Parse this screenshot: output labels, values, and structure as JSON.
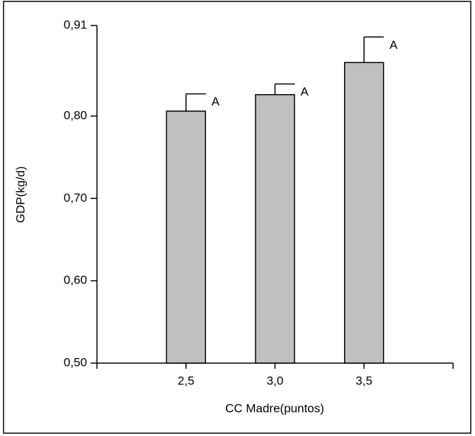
{
  "chart_data": {
    "type": "bar",
    "x_label": "CC Madre(puntos)",
    "y_label": "GDP(kg/d)",
    "categories": [
      "2,5",
      "3,0",
      "3,5"
    ],
    "values": [
      0.806,
      0.826,
      0.865
    ],
    "errors": [
      0.021,
      0.013,
      0.031
    ],
    "annotations": [
      "A",
      "A",
      "A"
    ],
    "color": "#c0c0c0",
    "ylim": [
      0.5,
      0.91
    ],
    "yticks": [
      {
        "value": 0.5,
        "label": "0,50"
      },
      {
        "value": 0.6,
        "label": "0,60"
      },
      {
        "value": 0.7,
        "label": "0,70"
      },
      {
        "value": 0.8,
        "label": "0,80"
      },
      {
        "value": 0.91,
        "label": "0,91"
      }
    ],
    "grid": false
  }
}
